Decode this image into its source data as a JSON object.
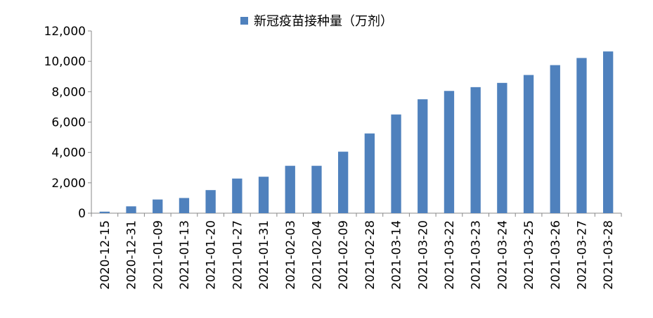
{
  "chart_data": {
    "type": "bar",
    "legend": "新冠疫苗接种量（万剂）",
    "legend_position": "top-center",
    "categories": [
      "2020-12-15",
      "2020-12-31",
      "2021-01-09",
      "2021-01-13",
      "2021-01-20",
      "2021-01-27",
      "2021-01-31",
      "2021-02-03",
      "2021-02-04",
      "2021-02-09",
      "2021-02-28",
      "2021-03-14",
      "2021-03-20",
      "2021-03-22",
      "2021-03-23",
      "2021-03-24",
      "2021-03-25",
      "2021-03-26",
      "2021-03-27",
      "2021-03-28"
    ],
    "series": [
      {
        "name": "新冠疫苗接种量（万剂）",
        "values": [
          100,
          450,
          900,
          1000,
          1520,
          2280,
          2400,
          3120,
          3120,
          4050,
          5250,
          6500,
          7500,
          8050,
          8300,
          8580,
          9100,
          9750,
          10220,
          10650
        ],
        "color": "#4f81bd"
      }
    ],
    "ylim": [
      0,
      12000
    ],
    "yticks": [
      0,
      2000,
      4000,
      6000,
      8000,
      10000,
      12000
    ],
    "ytick_labels": [
      "0",
      "2,000",
      "4,000",
      "6,000",
      "8,000",
      "10,000",
      "12,000"
    ],
    "grid": false
  }
}
